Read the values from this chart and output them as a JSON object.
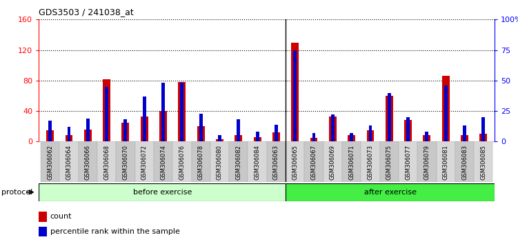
{
  "title": "GDS3503 / 241038_at",
  "categories": [
    "GSM306062",
    "GSM306064",
    "GSM306066",
    "GSM306068",
    "GSM306070",
    "GSM306072",
    "GSM306074",
    "GSM306076",
    "GSM306078",
    "GSM306080",
    "GSM306082",
    "GSM306084",
    "GSM306063",
    "GSM306065",
    "GSM306067",
    "GSM306069",
    "GSM306071",
    "GSM306073",
    "GSM306075",
    "GSM306077",
    "GSM306079",
    "GSM306081",
    "GSM306083",
    "GSM306085"
  ],
  "count": [
    15,
    8,
    16,
    82,
    25,
    33,
    40,
    78,
    20,
    3,
    8,
    6,
    12,
    130,
    5,
    33,
    8,
    15,
    60,
    28,
    8,
    86,
    8,
    10
  ],
  "percentile": [
    17,
    12,
    19,
    45,
    18,
    37,
    48,
    48,
    23,
    5,
    18,
    8,
    14,
    75,
    7,
    22,
    7,
    13,
    40,
    20,
    8,
    46,
    13,
    20
  ],
  "before_exercise_count": 13,
  "ylim_left": [
    0,
    160
  ],
  "ylim_right": [
    0,
    100
  ],
  "yticks_left": [
    0,
    40,
    80,
    120,
    160
  ],
  "yticks_right": [
    0,
    25,
    50,
    75,
    100
  ],
  "ytick_labels_right": [
    "0",
    "25",
    "50",
    "75",
    "100%"
  ],
  "bar_color_count": "#cc0000",
  "bar_color_pct": "#0000cc",
  "before_label": "before exercise",
  "after_label": "after exercise",
  "before_bg": "#ccffcc",
  "after_bg": "#44ee44",
  "protocol_label": "protocol",
  "legend_count": "count",
  "legend_pct": "percentile rank within the sample"
}
